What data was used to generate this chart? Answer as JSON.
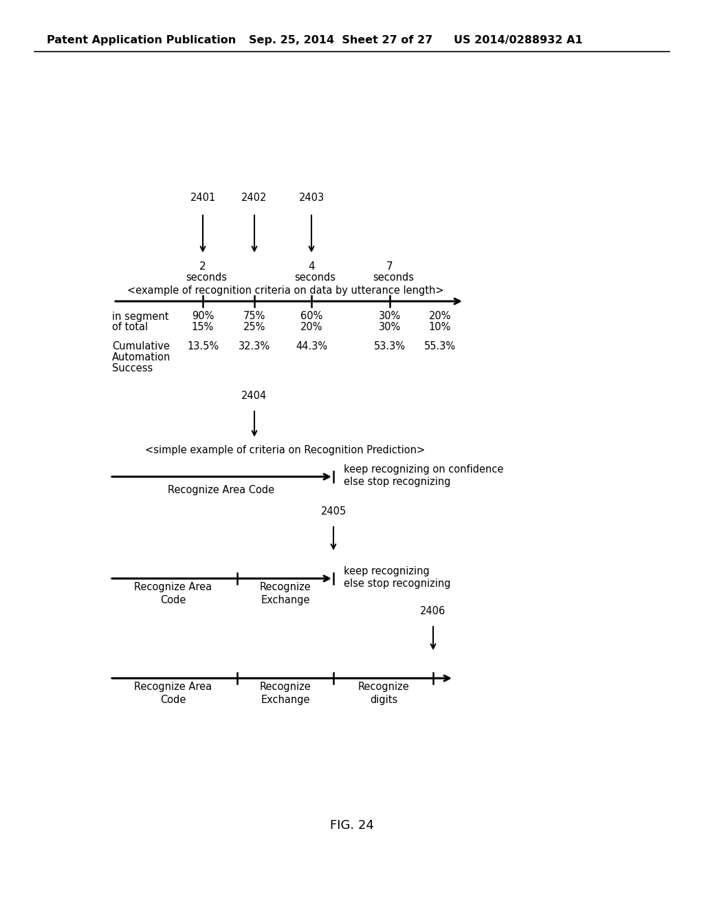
{
  "header_left": "Patent Application Publication",
  "header_mid": "Sep. 25, 2014  Sheet 27 of 27",
  "header_right": "US 2014/0288932 A1",
  "fig_label": "FIG. 24",
  "bg_color": "#ffffff",
  "text_color": "#000000"
}
